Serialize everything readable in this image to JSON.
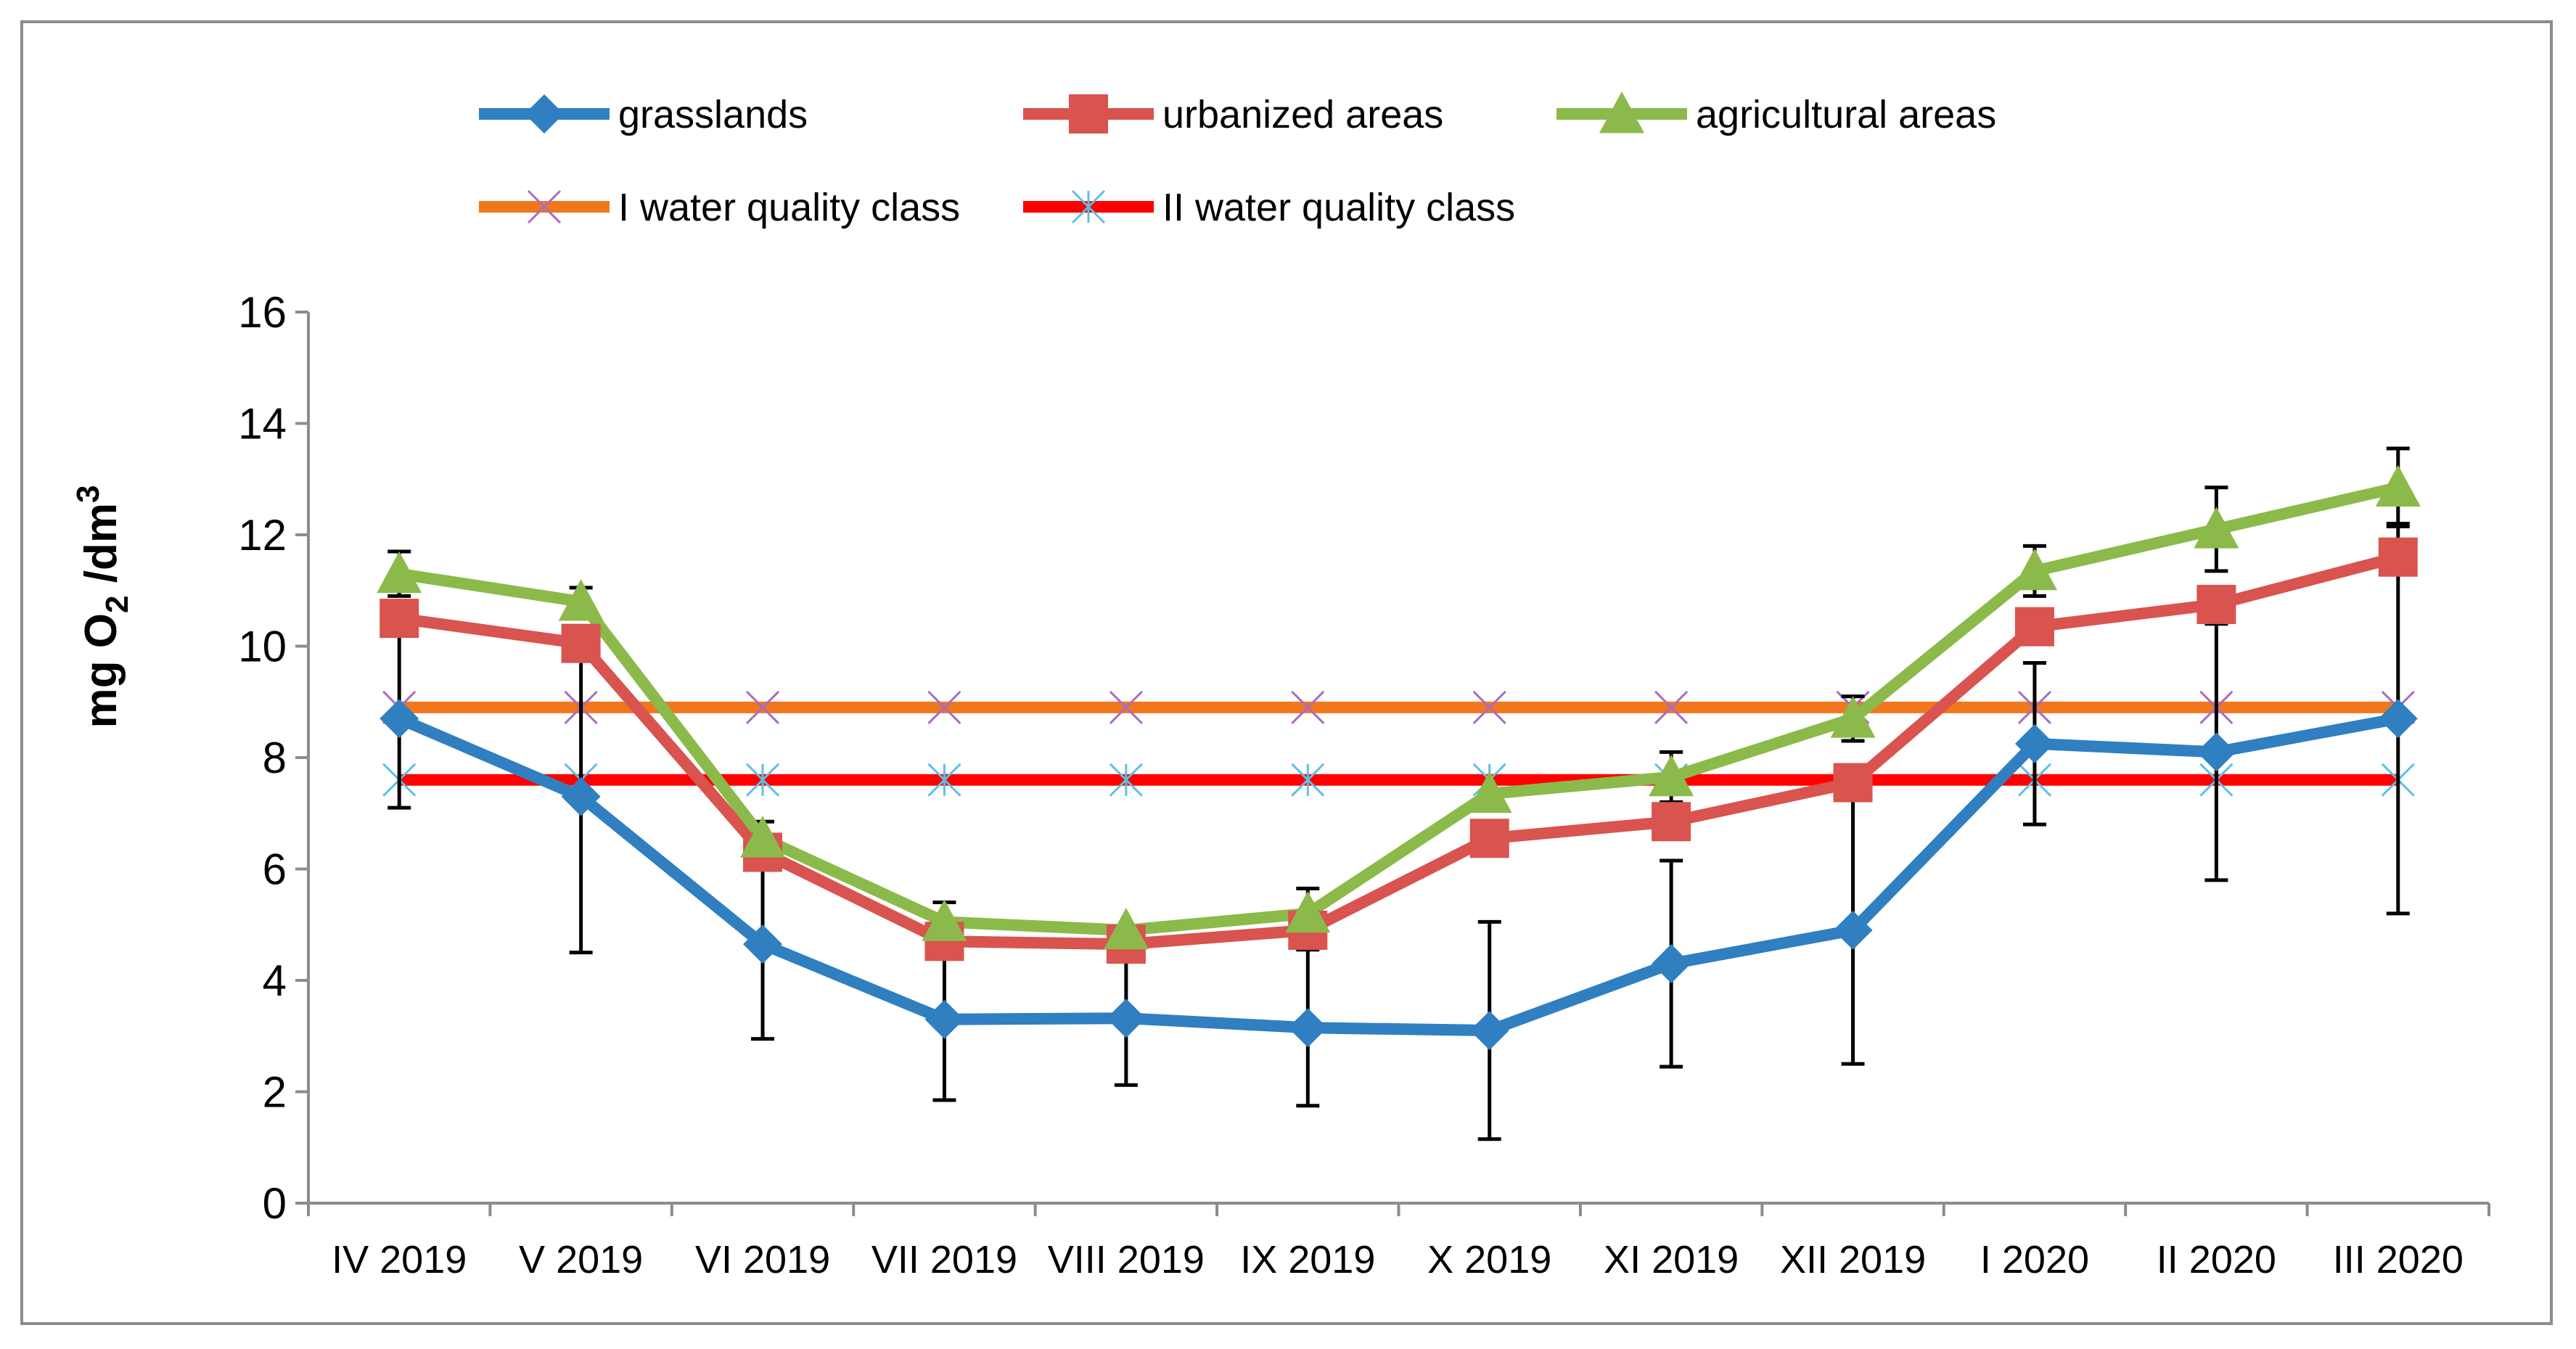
{
  "chart_data": {
    "type": "line",
    "title": "",
    "xlabel": "",
    "ylabel": {
      "main": "mg O",
      "sub": "2",
      "mid": " /dm",
      "sup": "3"
    },
    "ylim": [
      0,
      16
    ],
    "yticks": [
      0,
      2,
      4,
      6,
      8,
      10,
      12,
      14,
      16
    ],
    "categories": [
      "IV 2019",
      "V 2019",
      "VI 2019",
      "VII 2019",
      "VIII 2019",
      "IX 2019",
      "X 2019",
      "XI 2019",
      "XII 2019",
      "I 2020",
      "II 2020",
      "III 2020"
    ],
    "series": [
      {
        "name": "grasslands",
        "color": "#2f7fc1",
        "marker": "diamond",
        "values": [
          8.7,
          7.3,
          4.65,
          3.3,
          3.32,
          3.15,
          3.1,
          4.3,
          4.9,
          8.25,
          8.1,
          8.7
        ],
        "error": [
          1.6,
          2.8,
          1.7,
          1.45,
          1.2,
          1.4,
          1.95,
          1.85,
          2.4,
          1.45,
          2.3,
          3.5
        ]
      },
      {
        "name": "urbanized areas",
        "color": "#d9534f",
        "marker": "square",
        "values": [
          10.5,
          10.05,
          6.3,
          4.7,
          4.65,
          4.9,
          6.55,
          6.85,
          7.55,
          10.35,
          10.75,
          11.6
        ],
        "error": []
      },
      {
        "name": "agricultural areas",
        "color": "#8bba4a",
        "marker": "triangle",
        "values": [
          11.3,
          10.8,
          6.55,
          5.05,
          4.9,
          5.2,
          7.35,
          7.65,
          8.7,
          11.35,
          12.1,
          12.85
        ],
        "error": [
          0.4,
          0.25,
          0.3,
          0.35,
          0.0,
          0.45,
          0.0,
          0.45,
          0.4,
          0.45,
          0.75,
          0.7
        ]
      },
      {
        "name": "I water quality class",
        "color": "#f0771c",
        "marker": "x",
        "constant": 8.9,
        "values": [
          8.9,
          8.9,
          8.9,
          8.9,
          8.9,
          8.9,
          8.9,
          8.9,
          8.9,
          8.9,
          8.9,
          8.9
        ]
      },
      {
        "name": "II water quality class",
        "color": "#ff0000",
        "marker": "star",
        "constant": 7.6,
        "values": [
          7.6,
          7.6,
          7.6,
          7.6,
          7.6,
          7.6,
          7.6,
          7.6,
          7.6,
          7.6,
          7.6,
          7.6
        ]
      }
    ],
    "legend_position": "top"
  }
}
